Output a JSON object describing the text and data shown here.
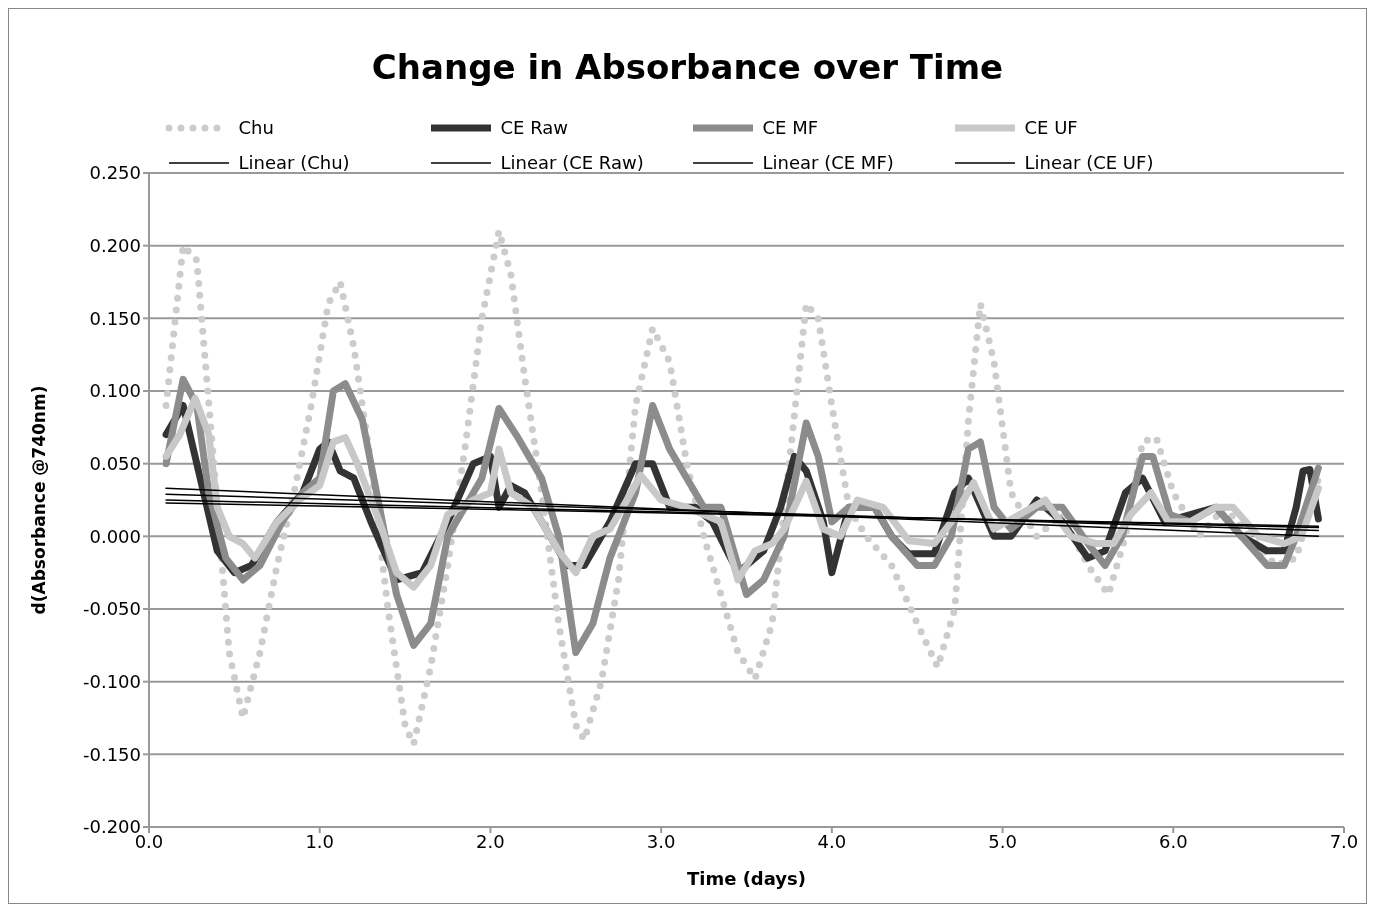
{
  "chart_data": {
    "type": "line",
    "title": "Change in Absorbance over Time",
    "xlabel": "Time (days)",
    "ylabel": "d(Absorbance @740nm)",
    "xlim": [
      0,
      7
    ],
    "xticks": [
      {
        "value": 0,
        "label": "0.0"
      },
      {
        "value": 1,
        "label": "1.0"
      },
      {
        "value": 2,
        "label": "2.0"
      },
      {
        "value": 3,
        "label": "3.0"
      },
      {
        "value": 4,
        "label": "4.0"
      },
      {
        "value": 5,
        "label": "5.0"
      },
      {
        "value": 6,
        "label": "6.0"
      },
      {
        "value": 7,
        "label": "7.0"
      }
    ],
    "ylim": [
      -0.2,
      0.25
    ],
    "yticks": [
      {
        "value": -0.2,
        "label": "-0.200"
      },
      {
        "value": -0.15,
        "label": "-0.150"
      },
      {
        "value": -0.1,
        "label": "-0.100"
      },
      {
        "value": -0.05,
        "label": "-0.050"
      },
      {
        "value": 0,
        "label": "0.000"
      },
      {
        "value": 0.05,
        "label": "0.050"
      },
      {
        "value": 0.1,
        "label": "0.100"
      },
      {
        "value": 0.15,
        "label": "0.150"
      },
      {
        "value": 0.2,
        "label": "0.200"
      },
      {
        "value": 0.25,
        "label": "0.250"
      }
    ],
    "grid": "y",
    "legend": "top",
    "marker": "none",
    "series": [
      {
        "name": "Chu",
        "color": "#cccccc",
        "line_style": "dotted",
        "x": [
          0.1,
          0.2,
          0.28,
          0.38,
          0.47,
          0.55,
          0.65,
          0.75,
          0.85,
          0.95,
          1.05,
          1.12,
          1.2,
          1.3,
          1.4,
          1.5,
          1.55,
          1.65,
          1.75,
          1.85,
          1.95,
          2.05,
          2.12,
          2.2,
          2.3,
          2.4,
          2.5,
          2.55,
          2.65,
          2.75,
          2.85,
          2.95,
          3.05,
          3.15,
          3.25,
          3.35,
          3.45,
          3.55,
          3.65,
          3.75,
          3.85,
          3.92,
          4.0,
          4.1,
          4.2,
          4.35,
          4.5,
          4.62,
          4.72,
          4.8,
          4.87,
          4.95,
          5.05,
          5.2,
          5.35,
          5.5,
          5.62,
          5.72,
          5.82,
          5.9,
          6.0,
          6.15,
          6.3,
          6.45,
          6.6,
          6.72,
          6.85
        ],
        "values": [
          0.09,
          0.2,
          0.19,
          0.05,
          -0.08,
          -0.125,
          -0.08,
          -0.02,
          0.03,
          0.09,
          0.16,
          0.175,
          0.13,
          0.05,
          -0.05,
          -0.13,
          -0.143,
          -0.09,
          -0.02,
          0.06,
          0.15,
          0.21,
          0.18,
          0.11,
          0.03,
          -0.06,
          -0.13,
          -0.14,
          -0.1,
          -0.03,
          0.09,
          0.143,
          0.12,
          0.05,
          0.0,
          -0.04,
          -0.08,
          -0.098,
          -0.06,
          0.05,
          0.16,
          0.15,
          0.09,
          0.02,
          0.0,
          -0.02,
          -0.06,
          -0.09,
          -0.05,
          0.08,
          0.16,
          0.12,
          0.03,
          0.0,
          0.015,
          -0.02,
          -0.04,
          0.0,
          0.065,
          0.068,
          0.03,
          0.0,
          0.02,
          0.0,
          -0.02,
          -0.015,
          0.04
        ]
      },
      {
        "name": "CE Raw",
        "color": "#333333",
        "line_style": "solid",
        "x": [
          0.1,
          0.2,
          0.3,
          0.4,
          0.5,
          0.6,
          0.75,
          0.9,
          1.0,
          1.05,
          1.12,
          1.2,
          1.3,
          1.45,
          1.6,
          1.75,
          1.9,
          2.0,
          2.05,
          2.12,
          2.2,
          2.35,
          2.45,
          2.55,
          2.7,
          2.85,
          2.95,
          3.05,
          3.2,
          3.3,
          3.45,
          3.6,
          3.7,
          3.78,
          3.85,
          3.95,
          4.0,
          4.1,
          4.25,
          4.35,
          4.45,
          4.6,
          4.72,
          4.8,
          4.95,
          5.05,
          5.2,
          5.35,
          5.5,
          5.6,
          5.72,
          5.82,
          5.95,
          6.1,
          6.25,
          6.4,
          6.55,
          6.65,
          6.72,
          6.76,
          6.8,
          6.85
        ],
        "values": [
          0.07,
          0.09,
          0.04,
          -0.01,
          -0.025,
          -0.02,
          0.01,
          0.03,
          0.06,
          0.065,
          0.045,
          0.04,
          0.01,
          -0.03,
          -0.025,
          0.01,
          0.05,
          0.055,
          0.02,
          0.035,
          0.03,
          0.0,
          -0.02,
          -0.02,
          0.01,
          0.05,
          0.05,
          0.02,
          0.02,
          0.01,
          -0.025,
          -0.01,
          0.02,
          0.055,
          0.045,
          0.01,
          -0.025,
          0.02,
          0.02,
          0.0,
          -0.012,
          -0.012,
          0.03,
          0.04,
          0.0,
          0.0,
          0.025,
          0.01,
          -0.015,
          -0.01,
          0.03,
          0.04,
          0.01,
          0.015,
          0.02,
          0.0,
          -0.01,
          -0.01,
          0.02,
          0.045,
          0.046,
          0.012
        ]
      },
      {
        "name": "CE MF",
        "color": "#8c8c8c",
        "line_style": "solid",
        "x": [
          0.1,
          0.2,
          0.28,
          0.35,
          0.45,
          0.55,
          0.65,
          0.78,
          0.9,
          1.0,
          1.08,
          1.15,
          1.25,
          1.35,
          1.45,
          1.55,
          1.65,
          1.75,
          1.85,
          1.95,
          2.05,
          2.15,
          2.3,
          2.4,
          2.5,
          2.6,
          2.7,
          2.85,
          2.95,
          3.05,
          3.15,
          3.25,
          3.35,
          3.5,
          3.6,
          3.72,
          3.85,
          3.92,
          4.0,
          4.1,
          4.25,
          4.35,
          4.5,
          4.6,
          4.7,
          4.8,
          4.87,
          4.95,
          5.05,
          5.2,
          5.35,
          5.5,
          5.6,
          5.7,
          5.82,
          5.88,
          5.98,
          6.1,
          6.25,
          6.4,
          6.55,
          6.65,
          6.72,
          6.85
        ],
        "values": [
          0.05,
          0.108,
          0.09,
          0.03,
          -0.015,
          -0.03,
          -0.02,
          0.01,
          0.03,
          0.04,
          0.1,
          0.105,
          0.08,
          0.02,
          -0.04,
          -0.075,
          -0.06,
          0.0,
          0.02,
          0.04,
          0.088,
          0.07,
          0.04,
          0.0,
          -0.08,
          -0.06,
          -0.015,
          0.03,
          0.09,
          0.06,
          0.04,
          0.02,
          0.02,
          -0.04,
          -0.03,
          0.0,
          0.078,
          0.055,
          0.01,
          0.02,
          0.02,
          0.0,
          -0.02,
          -0.02,
          0.0,
          0.06,
          0.065,
          0.02,
          0.005,
          0.02,
          0.02,
          -0.005,
          -0.02,
          0.0,
          0.055,
          0.055,
          0.015,
          0.01,
          0.02,
          0.0,
          -0.02,
          -0.02,
          0.0,
          0.047
        ]
      },
      {
        "name": "CE UF",
        "color": "#c8c8c8",
        "line_style": "solid",
        "x": [
          0.1,
          0.18,
          0.27,
          0.35,
          0.4,
          0.47,
          0.55,
          0.62,
          0.75,
          0.88,
          1.0,
          1.08,
          1.15,
          1.22,
          1.35,
          1.45,
          1.55,
          1.65,
          1.75,
          1.9,
          2.0,
          2.05,
          2.12,
          2.25,
          2.4,
          2.5,
          2.6,
          2.7,
          2.8,
          2.88,
          3.0,
          3.15,
          3.25,
          3.35,
          3.45,
          3.55,
          3.65,
          3.72,
          3.8,
          3.85,
          3.95,
          4.05,
          4.15,
          4.3,
          4.45,
          4.6,
          4.7,
          4.83,
          4.95,
          5.1,
          5.25,
          5.4,
          5.55,
          5.65,
          5.75,
          5.87,
          5.97,
          6.1,
          6.25,
          6.35,
          6.5,
          6.65,
          6.75,
          6.85
        ],
        "values": [
          0.055,
          0.07,
          0.095,
          0.07,
          0.02,
          0.0,
          -0.005,
          -0.015,
          0.01,
          0.025,
          0.035,
          0.065,
          0.068,
          0.05,
          0.01,
          -0.025,
          -0.035,
          -0.02,
          0.015,
          0.025,
          0.03,
          0.06,
          0.03,
          0.02,
          -0.01,
          -0.025,
          0.0,
          0.005,
          0.025,
          0.042,
          0.025,
          0.02,
          0.015,
          0.01,
          -0.03,
          -0.01,
          -0.005,
          0.005,
          0.025,
          0.038,
          0.005,
          0.0,
          0.025,
          0.02,
          -0.003,
          -0.005,
          0.01,
          0.037,
          0.005,
          0.015,
          0.025,
          0.0,
          -0.005,
          -0.005,
          0.015,
          0.03,
          0.01,
          0.01,
          0.02,
          0.02,
          0.0,
          -0.005,
          0.0,
          0.033
        ]
      },
      {
        "name": "Linear (Chu)",
        "color": "#000000",
        "line_style": "solid",
        "x": [
          0.1,
          6.85
        ],
        "values": [
          0.033,
          0.0
        ]
      },
      {
        "name": "Linear (CE Raw)",
        "color": "#000000",
        "line_style": "solid",
        "x": [
          0.1,
          6.85
        ],
        "values": [
          0.023,
          0.007
        ]
      },
      {
        "name": "Linear (CE MF)",
        "color": "#000000",
        "line_style": "solid",
        "x": [
          0.1,
          6.85
        ],
        "values": [
          0.029,
          0.004
        ]
      },
      {
        "name": "Linear (CE UF)",
        "color": "#000000",
        "line_style": "solid",
        "x": [
          0.1,
          6.85
        ],
        "values": [
          0.025,
          0.006
        ]
      }
    ]
  }
}
